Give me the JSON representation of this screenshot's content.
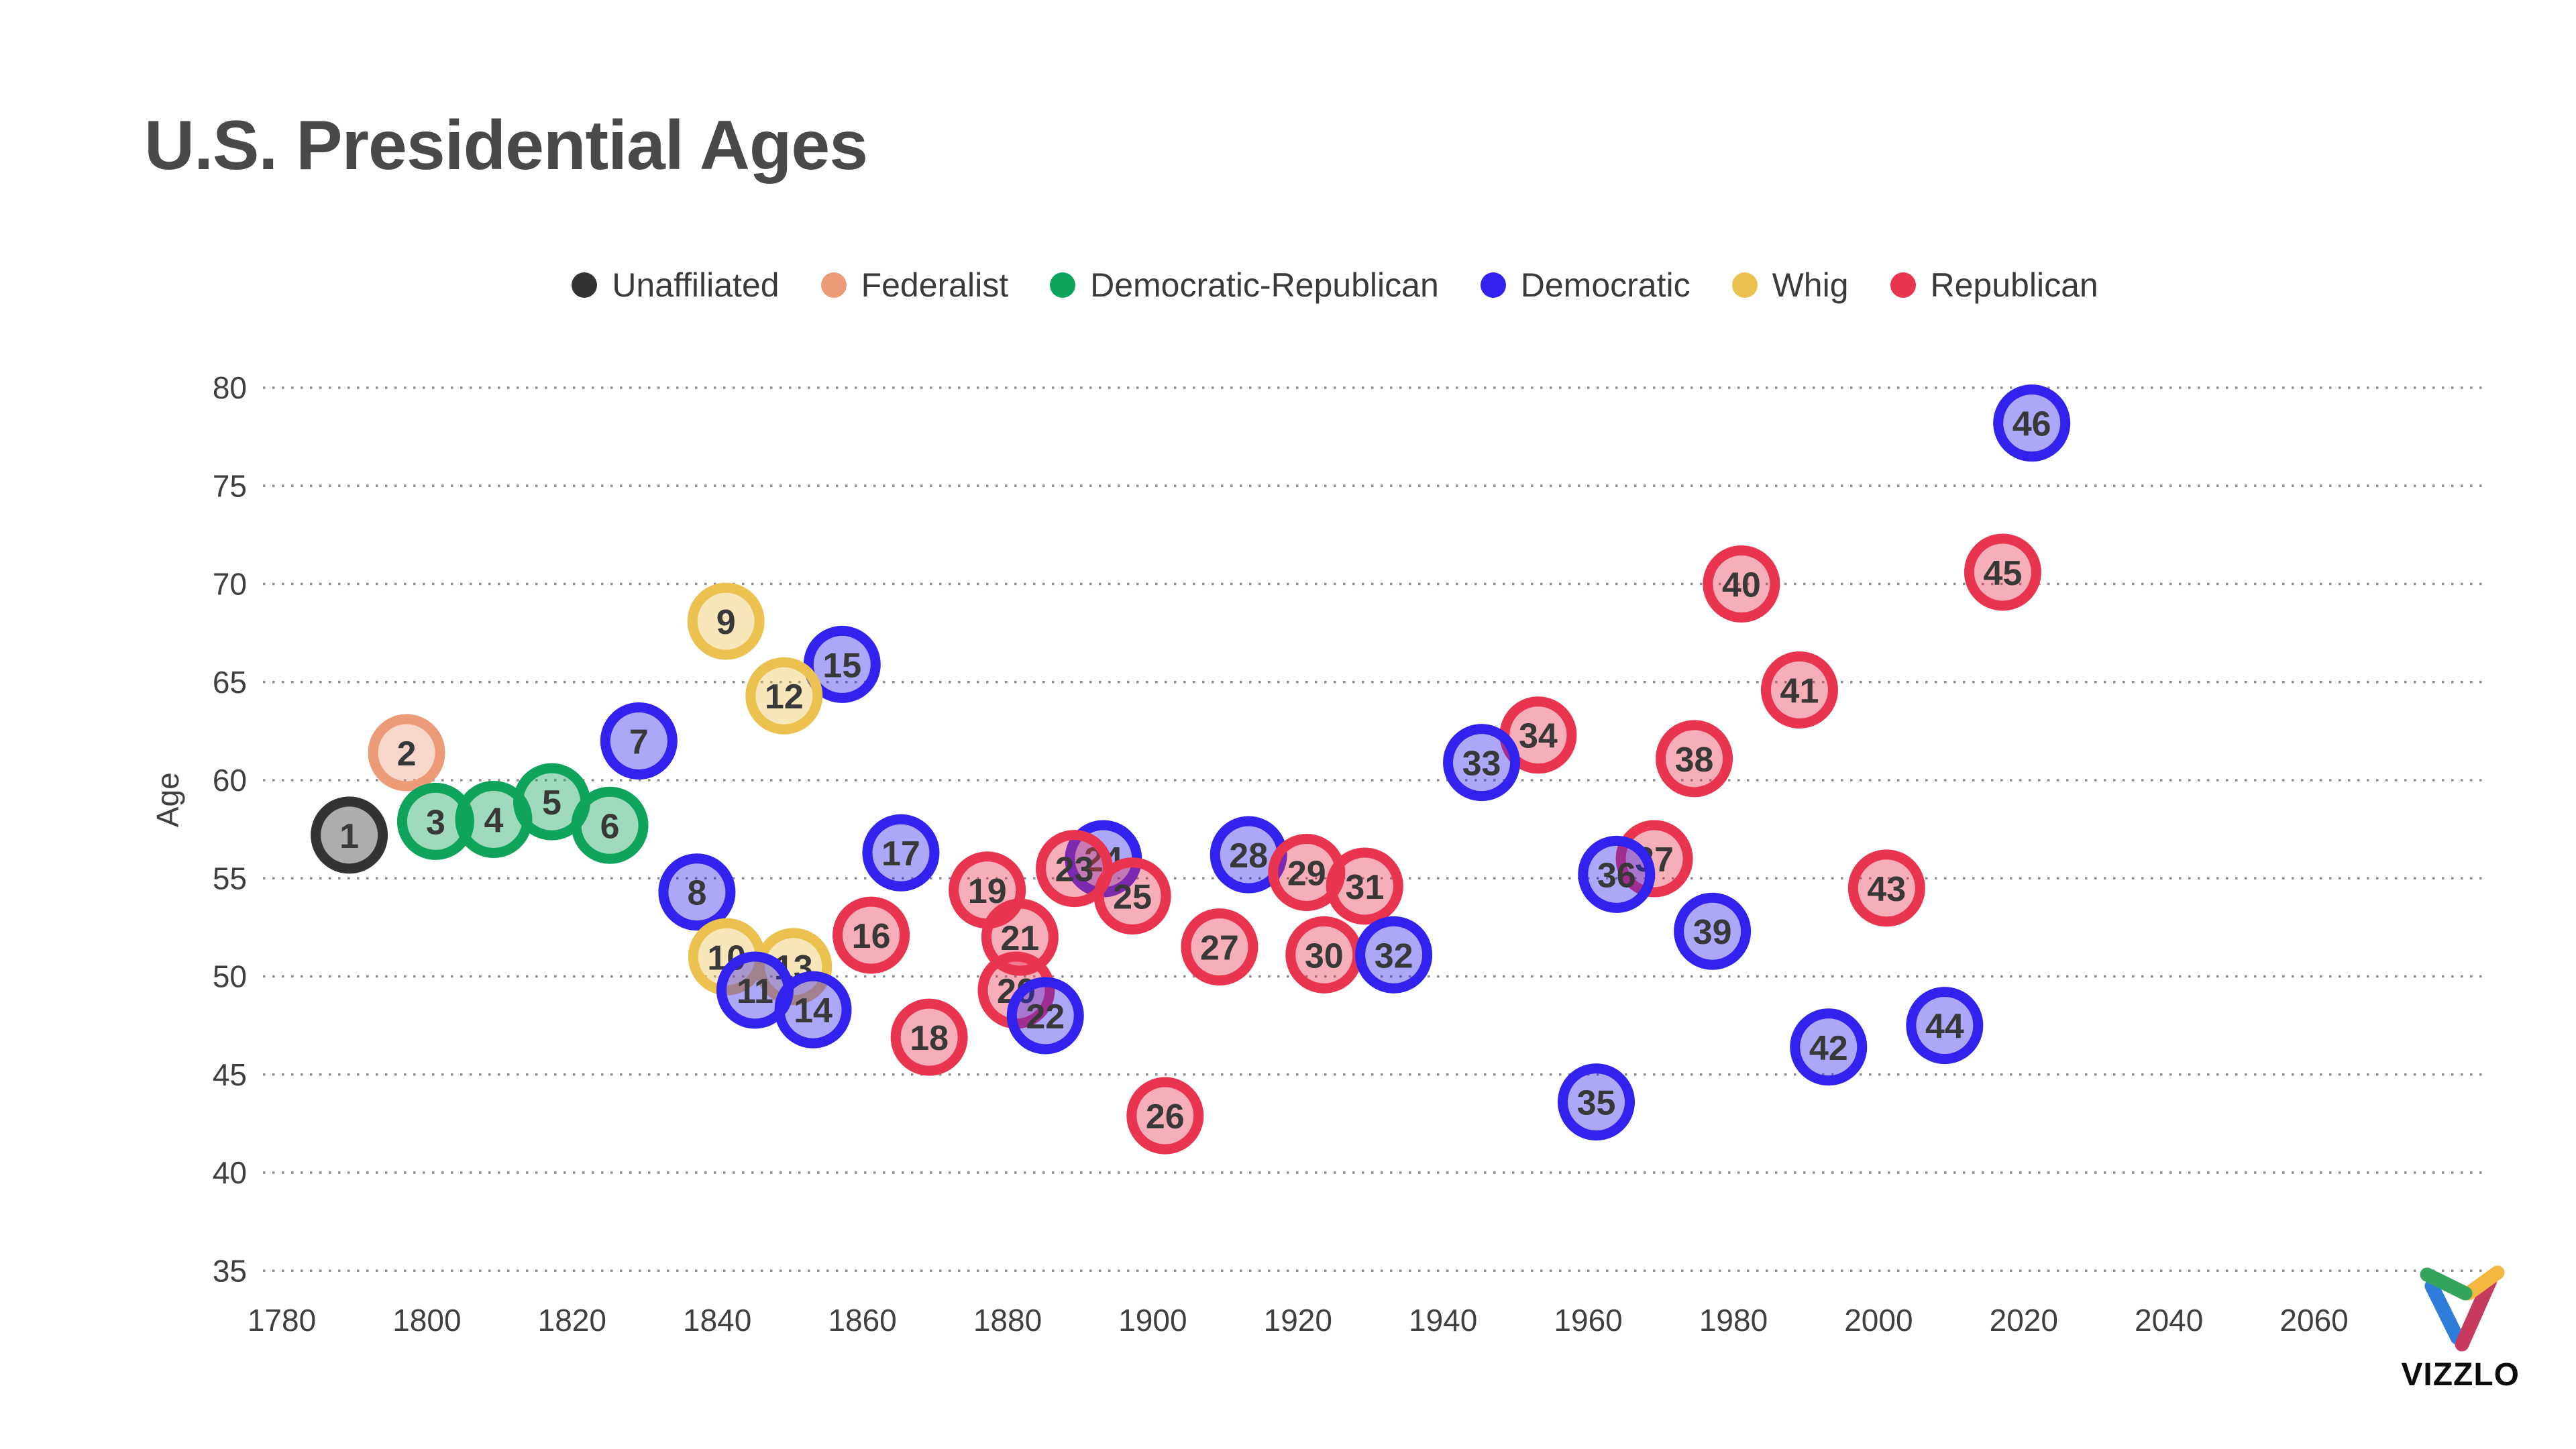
{
  "title": "U.S. Presidential Ages",
  "brand": {
    "wordmark": "VIZZLO"
  },
  "legend": {
    "items": [
      {
        "label": "Unaffiliated",
        "party": "Unaffiliated"
      },
      {
        "label": "Federalist",
        "party": "Federalist"
      },
      {
        "label": "Democratic-Republican",
        "party": "Democratic-Republican"
      },
      {
        "label": "Democratic",
        "party": "Democratic"
      },
      {
        "label": "Whig",
        "party": "Whig"
      },
      {
        "label": "Republican",
        "party": "Republican"
      }
    ]
  },
  "chart_data": {
    "type": "scatter",
    "title": "U.S. Presidential Ages",
    "xlabel": "",
    "ylabel": "Age",
    "xlim": [
      1780,
      2060
    ],
    "ylim": [
      35,
      80
    ],
    "x_ticks": [
      1780,
      1800,
      1820,
      1840,
      1860,
      1880,
      1900,
      1920,
      1940,
      1960,
      1980,
      2000,
      2020,
      2040,
      2060
    ],
    "y_ticks": [
      80,
      75,
      70,
      65,
      60,
      55,
      50,
      45,
      40,
      35
    ],
    "grid": "dotted-horizontal",
    "legend_position": "top-center",
    "party_colors": {
      "Unaffiliated": "#333333",
      "Federalist": "#EC9B79",
      "Democratic-Republican": "#10A35C",
      "Democratic": "#3222EE",
      "Whig": "#EBC14F",
      "Republican": "#E93450"
    },
    "fill_opacity": 0.4,
    "points": [
      {
        "n": 1,
        "year": 1789.3,
        "age": 57.2,
        "party": "Unaffiliated"
      },
      {
        "n": 2,
        "year": 1797.2,
        "age": 61.4,
        "party": "Federalist"
      },
      {
        "n": 3,
        "year": 1801.2,
        "age": 57.9,
        "party": "Democratic-Republican"
      },
      {
        "n": 4,
        "year": 1809.2,
        "age": 58.0,
        "party": "Democratic-Republican"
      },
      {
        "n": 5,
        "year": 1817.2,
        "age": 58.9,
        "party": "Democratic-Republican"
      },
      {
        "n": 6,
        "year": 1825.2,
        "age": 57.7,
        "party": "Democratic-Republican"
      },
      {
        "n": 7,
        "year": 1829.2,
        "age": 62.0,
        "party": "Democratic"
      },
      {
        "n": 8,
        "year": 1837.2,
        "age": 54.3,
        "party": "Democratic"
      },
      {
        "n": 9,
        "year": 1841.2,
        "age": 68.1,
        "party": "Whig"
      },
      {
        "n": 10,
        "year": 1841.3,
        "age": 51.0,
        "party": "Whig"
      },
      {
        "n": 11,
        "year": 1845.2,
        "age": 49.3,
        "party": "Democratic"
      },
      {
        "n": 12,
        "year": 1849.2,
        "age": 64.3,
        "party": "Whig"
      },
      {
        "n": 13,
        "year": 1850.5,
        "age": 50.5,
        "party": "Whig"
      },
      {
        "n": 14,
        "year": 1853.2,
        "age": 48.3,
        "party": "Democratic"
      },
      {
        "n": 15,
        "year": 1857.2,
        "age": 65.9,
        "party": "Democratic"
      },
      {
        "n": 16,
        "year": 1861.2,
        "age": 52.1,
        "party": "Republican"
      },
      {
        "n": 17,
        "year": 1865.3,
        "age": 56.3,
        "party": "Democratic"
      },
      {
        "n": 18,
        "year": 1869.2,
        "age": 46.9,
        "party": "Republican"
      },
      {
        "n": 19,
        "year": 1877.2,
        "age": 54.4,
        "party": "Republican"
      },
      {
        "n": 20,
        "year": 1881.2,
        "age": 49.3,
        "party": "Republican"
      },
      {
        "n": 21,
        "year": 1881.7,
        "age": 52.0,
        "party": "Republican"
      },
      {
        "n": 22,
        "year": 1885.2,
        "age": 48.0,
        "party": "Democratic"
      },
      {
        "n": 23,
        "year": 1889.2,
        "age": 55.5,
        "party": "Republican"
      },
      {
        "n": 24,
        "year": 1893.2,
        "age": 56.0,
        "party": "Democratic"
      },
      {
        "n": 25,
        "year": 1897.2,
        "age": 54.1,
        "party": "Republican"
      },
      {
        "n": 26,
        "year": 1901.7,
        "age": 42.9,
        "party": "Republican"
      },
      {
        "n": 27,
        "year": 1909.2,
        "age": 51.5,
        "party": "Republican"
      },
      {
        "n": 28,
        "year": 1913.2,
        "age": 56.2,
        "party": "Democratic"
      },
      {
        "n": 29,
        "year": 1921.2,
        "age": 55.3,
        "party": "Republican"
      },
      {
        "n": 30,
        "year": 1923.6,
        "age": 51.1,
        "party": "Republican"
      },
      {
        "n": 31,
        "year": 1929.2,
        "age": 54.6,
        "party": "Republican"
      },
      {
        "n": 32,
        "year": 1933.2,
        "age": 51.1,
        "party": "Democratic"
      },
      {
        "n": 33,
        "year": 1945.3,
        "age": 60.9,
        "party": "Democratic"
      },
      {
        "n": 34,
        "year": 1953.1,
        "age": 62.3,
        "party": "Republican"
      },
      {
        "n": 35,
        "year": 1961.1,
        "age": 43.6,
        "party": "Democratic"
      },
      {
        "n": 36,
        "year": 1963.9,
        "age": 55.2,
        "party": "Democratic"
      },
      {
        "n": 37,
        "year": 1969.1,
        "age": 56.0,
        "party": "Republican"
      },
      {
        "n": 38,
        "year": 1974.6,
        "age": 61.1,
        "party": "Republican"
      },
      {
        "n": 39,
        "year": 1977.1,
        "age": 52.3,
        "party": "Democratic"
      },
      {
        "n": 40,
        "year": 1981.1,
        "age": 70.0,
        "party": "Republican"
      },
      {
        "n": 41,
        "year": 1989.1,
        "age": 64.6,
        "party": "Republican"
      },
      {
        "n": 42,
        "year": 1993.1,
        "age": 46.4,
        "party": "Democratic"
      },
      {
        "n": 43,
        "year": 2001.1,
        "age": 54.5,
        "party": "Republican"
      },
      {
        "n": 44,
        "year": 2009.1,
        "age": 47.5,
        "party": "Democratic"
      },
      {
        "n": 45,
        "year": 2017.1,
        "age": 70.6,
        "party": "Republican"
      },
      {
        "n": 46,
        "year": 2021.1,
        "age": 78.2,
        "party": "Democratic"
      }
    ]
  }
}
